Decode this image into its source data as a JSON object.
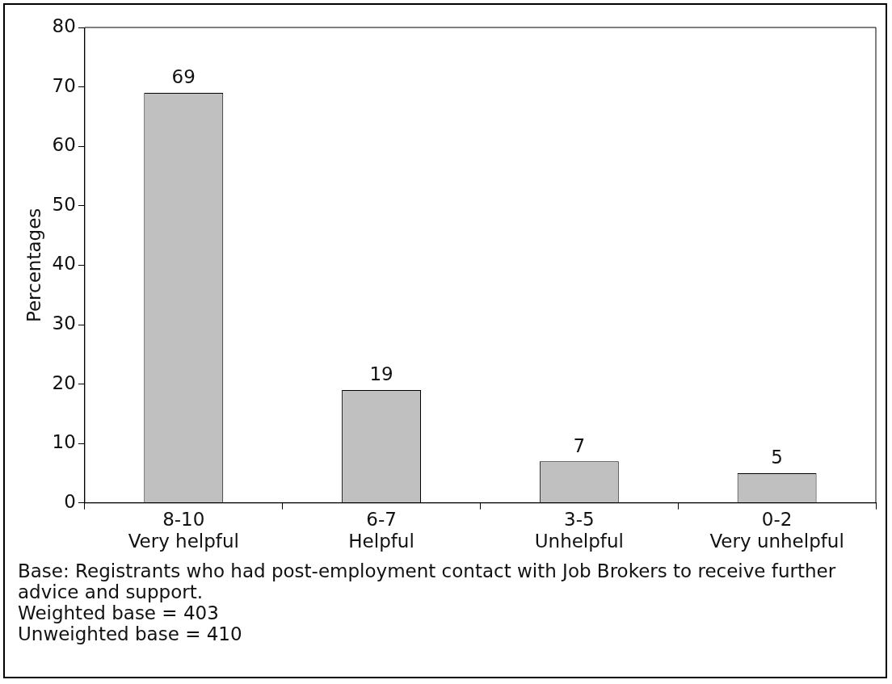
{
  "chart_data": {
    "type": "bar",
    "ylabel": "Percentages",
    "categories": [
      "8-10\nVery helpful",
      "6-7\nHelpful",
      "3-5\nUnhelpful",
      "0-2\nVery unhelpful"
    ],
    "values": [
      69,
      19,
      7,
      5
    ],
    "color": "#c0c0c0",
    "ylim": [
      0,
      80
    ],
    "yticks": [
      0,
      10,
      20,
      30,
      40,
      50,
      60,
      70,
      80
    ],
    "grid": false,
    "legend": false,
    "data_labels": true,
    "annotations": [
      "Base: Registrants who had post-employment contact with Job Brokers to receive further advice and support.",
      "Weighted base = 403",
      "Unweighted base = 410"
    ]
  }
}
